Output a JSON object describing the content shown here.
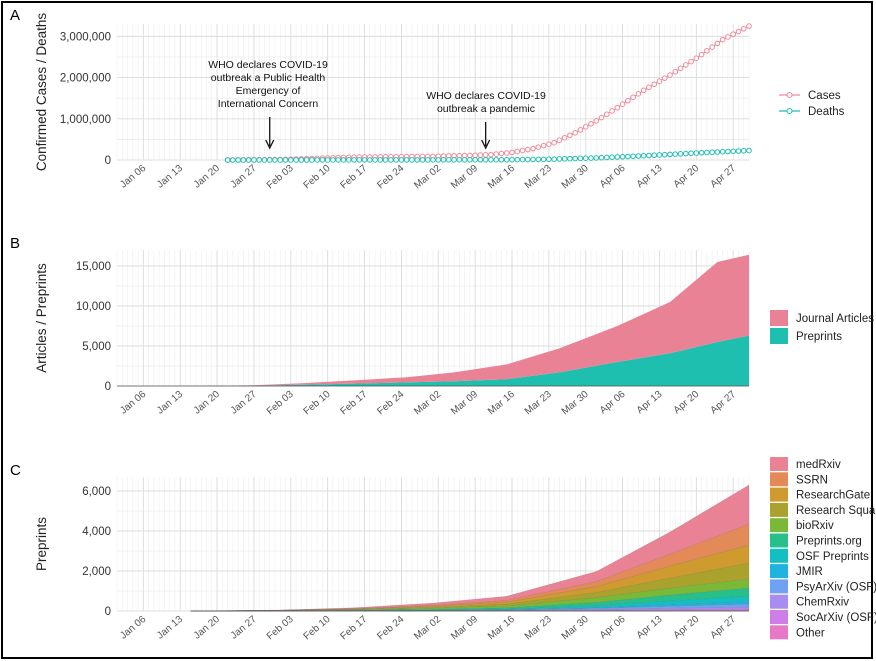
{
  "chart_data": [
    {
      "panel_label": "A",
      "type": "line",
      "ylabel": "Confirmed Cases / Deaths",
      "x_ticks": [
        "Jan 06",
        "Jan 13",
        "Jan 20",
        "Jan 27",
        "Feb 03",
        "Feb 10",
        "Feb 17",
        "Feb 24",
        "Mar 02",
        "Mar 09",
        "Mar 16",
        "Mar 23",
        "Mar 30",
        "Apr 06",
        "Apr 13",
        "Apr 20",
        "Apr 27"
      ],
      "y_ticks": [
        0,
        1000000,
        2000000,
        3000000
      ],
      "y_tick_labels": [
        "0",
        "1,000,000",
        "2,000,000",
        "3,000,000"
      ],
      "ylim": [
        0,
        3300000
      ],
      "xlim": [
        "2020-01-01",
        "2020-04-30"
      ],
      "grid": true,
      "legend_position": "right",
      "series": [
        {
          "name": "Cases",
          "color": "#f08a9a",
          "marker": "open-circle",
          "points": [
            [
              "2020-01-22",
              550
            ],
            [
              "2020-02-01",
              12000
            ],
            [
              "2020-02-15",
              69000
            ],
            [
              "2020-03-01",
              88000
            ],
            [
              "2020-03-08",
              110000
            ],
            [
              "2020-03-12",
              130000
            ],
            [
              "2020-03-16",
              185000
            ],
            [
              "2020-03-20",
              275000
            ],
            [
              "2020-03-24",
              420000
            ],
            [
              "2020-03-28",
              660000
            ],
            [
              "2020-04-01",
              950000
            ],
            [
              "2020-04-05",
              1270000
            ],
            [
              "2020-04-10",
              1690000
            ],
            [
              "2020-04-15",
              2060000
            ],
            [
              "2020-04-20",
              2470000
            ],
            [
              "2020-04-25",
              2920000
            ],
            [
              "2020-04-30",
              3250000
            ]
          ]
        },
        {
          "name": "Deaths",
          "color": "#1fbfb0",
          "marker": "open-circle",
          "points": [
            [
              "2020-01-22",
              17
            ],
            [
              "2020-02-15",
              1500
            ],
            [
              "2020-03-01",
              3000
            ],
            [
              "2020-03-15",
              6500
            ],
            [
              "2020-03-22",
              15000
            ],
            [
              "2020-04-01",
              51000
            ],
            [
              "2020-04-10",
              102000
            ],
            [
              "2020-04-20",
              170000
            ],
            [
              "2020-04-30",
              230000
            ]
          ]
        }
      ],
      "annotations": [
        {
          "lines": [
            "WHO declares COVID-19",
            "outbreak a Public Health",
            "Emergency of",
            "International Concern"
          ],
          "date": "2020-01-30"
        },
        {
          "lines": [
            "WHO declares COVID-19",
            "outbreak a pandemic"
          ],
          "date": "2020-03-11"
        }
      ]
    },
    {
      "panel_label": "B",
      "type": "area",
      "stacked": true,
      "ylabel": "Articles / Preprints",
      "x_ticks": [
        "Jan 06",
        "Jan 13",
        "Jan 20",
        "Jan 27",
        "Feb 03",
        "Feb 10",
        "Feb 17",
        "Feb 24",
        "Mar 02",
        "Mar 09",
        "Mar 16",
        "Mar 23",
        "Mar 30",
        "Apr 06",
        "Apr 13",
        "Apr 20",
        "Apr 27"
      ],
      "y_ticks": [
        0,
        5000,
        10000,
        15000
      ],
      "y_tick_labels": [
        "0",
        "5,000",
        "10,000",
        "15,000"
      ],
      "ylim": [
        0,
        17000
      ],
      "xlim": [
        "2020-01-01",
        "2020-04-30"
      ],
      "grid": true,
      "legend_position": "right",
      "x": [
        "2020-01-01",
        "2020-01-15",
        "2020-01-27",
        "2020-02-05",
        "2020-02-15",
        "2020-02-25",
        "2020-03-05",
        "2020-03-15",
        "2020-03-25",
        "2020-04-05",
        "2020-04-15",
        "2020-04-24",
        "2020-04-30"
      ],
      "series": [
        {
          "name": "Preprints",
          "color": "#1fbfb0",
          "values": [
            0,
            5,
            40,
            150,
            300,
            450,
            600,
            850,
            1700,
            3000,
            4100,
            5500,
            6300
          ]
        },
        {
          "name": "Journal Articles",
          "color": "#ea8296",
          "values": [
            0,
            5,
            60,
            200,
            400,
            650,
            1100,
            1850,
            3000,
            4500,
            6400,
            10000,
            10100
          ]
        }
      ]
    },
    {
      "panel_label": "C",
      "type": "area",
      "stacked": true,
      "ylabel": "Preprints",
      "x_ticks": [
        "Jan 06",
        "Jan 13",
        "Jan 20",
        "Jan 27",
        "Feb 03",
        "Feb 10",
        "Feb 17",
        "Feb 24",
        "Mar 02",
        "Mar 09",
        "Mar 16",
        "Mar 23",
        "Mar 30",
        "Apr 06",
        "Apr 13",
        "Apr 20",
        "Apr 27"
      ],
      "y_ticks": [
        0,
        2000,
        4000,
        6000
      ],
      "y_tick_labels": [
        "0",
        "2,000",
        "4,000",
        "6,000"
      ],
      "ylim": [
        0,
        6700
      ],
      "xlim": [
        "2020-01-01",
        "2020-04-30"
      ],
      "grid": true,
      "legend_position": "right",
      "x": [
        "2020-01-15",
        "2020-02-01",
        "2020-02-15",
        "2020-03-01",
        "2020-03-15",
        "2020-04-01",
        "2020-04-15",
        "2020-04-30"
      ],
      "series": [
        {
          "name": "Other",
          "color": "#e879c9",
          "values": [
            0,
            2,
            5,
            8,
            12,
            20,
            30,
            40
          ]
        },
        {
          "name": "SocArXiv (OSF)",
          "color": "#cf7ee8",
          "values": [
            0,
            1,
            3,
            6,
            10,
            25,
            40,
            60
          ]
        },
        {
          "name": "ChemRxiv",
          "color": "#a98cf0",
          "values": [
            0,
            2,
            5,
            10,
            15,
            40,
            70,
            100
          ]
        },
        {
          "name": "PsyArXiv (OSF)",
          "color": "#6fa2f2",
          "values": [
            0,
            1,
            3,
            8,
            15,
            50,
            100,
            150
          ]
        },
        {
          "name": "JMIR",
          "color": "#1fb3e0",
          "values": [
            0,
            1,
            3,
            8,
            15,
            40,
            80,
            120
          ]
        },
        {
          "name": "OSF Preprints",
          "color": "#12bfc1",
          "values": [
            0,
            3,
            8,
            20,
            40,
            100,
            200,
            280
          ]
        },
        {
          "name": "Preprints.org",
          "color": "#27c08a",
          "values": [
            0,
            5,
            15,
            35,
            60,
            150,
            280,
            400
          ]
        },
        {
          "name": "bioRxiv",
          "color": "#7ab837",
          "values": [
            0,
            10,
            30,
            60,
            100,
            250,
            350,
            450
          ]
        },
        {
          "name": "Research Square",
          "color": "#a9a32d",
          "values": [
            0,
            5,
            15,
            40,
            80,
            250,
            500,
            800
          ]
        },
        {
          "name": "ResearchGate",
          "color": "#cf9a2e",
          "values": [
            0,
            5,
            20,
            50,
            100,
            300,
            600,
            900
          ]
        },
        {
          "name": "SSRN",
          "color": "#e48a59",
          "values": [
            0,
            5,
            15,
            40,
            90,
            250,
            600,
            1050
          ]
        },
        {
          "name": "medRxiv",
          "color": "#ea8296",
          "values": [
            0,
            10,
            40,
            110,
            200,
            500,
            1100,
            1950
          ]
        }
      ]
    }
  ]
}
